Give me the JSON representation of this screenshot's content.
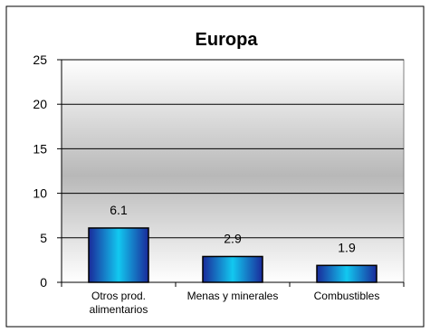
{
  "chart_data": {
    "type": "bar",
    "title": "Europa",
    "categories": [
      [
        "Otros prod.",
        "alimentarios"
      ],
      [
        "Menas y minerales"
      ],
      [
        "Combustibles"
      ]
    ],
    "values": [
      6.1,
      2.9,
      1.9
    ],
    "data_labels": [
      "6.1",
      "2.9",
      "1.9"
    ],
    "ylim": [
      0,
      25
    ],
    "yticks": [
      0,
      5,
      10,
      15,
      20,
      25
    ],
    "ytick_labels": [
      "0",
      "5",
      "10",
      "15",
      "20",
      "25"
    ],
    "xlabel": "",
    "ylabel": "",
    "grid": true,
    "legend": "none",
    "colors": {
      "bar_dark": "#1a2a9a",
      "bar_light": "#12c8f0",
      "plot_top": "#ffffff",
      "plot_mid": "#b8b8b8",
      "plot_bottom": "#ffffff",
      "grid": "#000000"
    }
  }
}
